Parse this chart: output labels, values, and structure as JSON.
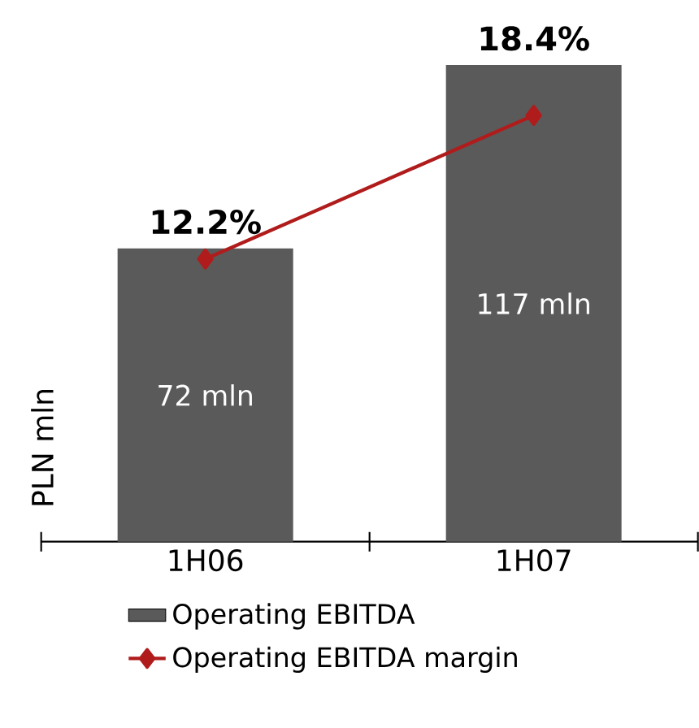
{
  "chart_data": {
    "type": "bar",
    "categories": [
      "1H06",
      "1H07"
    ],
    "ylabel": "PLN mln",
    "legend": "bottom",
    "marker": "diamond",
    "series": [
      {
        "name": "Operating EBITDA",
        "color": "#5a5a5a",
        "values": [
          72,
          117
        ],
        "value_labels": [
          "72 mln",
          "117 mln"
        ]
      },
      {
        "name": "Operating EBITDA margin",
        "type": "line",
        "axis": "y2",
        "color": "#b01c1c",
        "values": [
          12.2,
          18.4
        ],
        "value_labels": [
          "12.2%",
          "18.4%"
        ]
      }
    ]
  }
}
